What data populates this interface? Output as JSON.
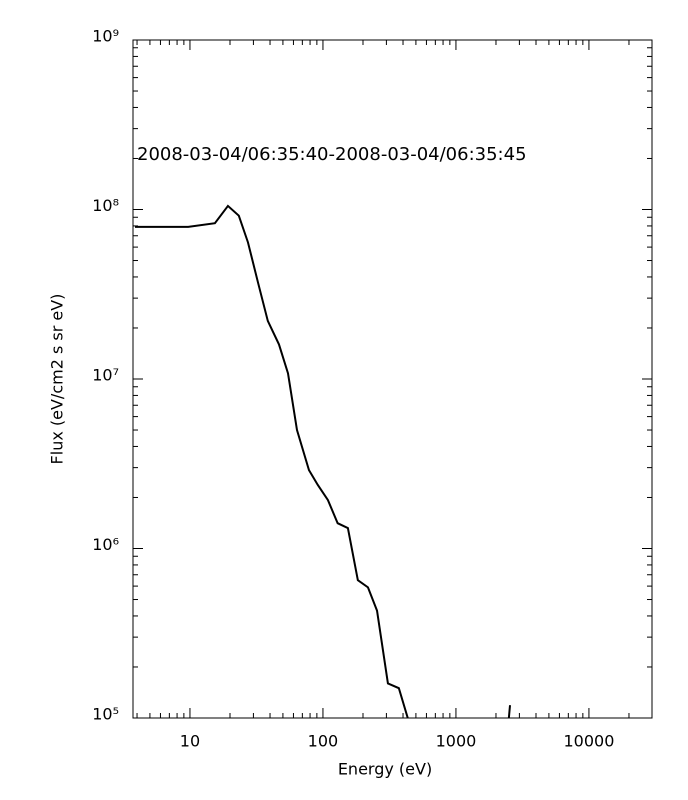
{
  "chart_data": {
    "type": "line",
    "annotation": "2008-03-04/06:35:40-2008-03-04/06:35:45",
    "x_label": "Energy (eV)",
    "y_label": "Flux (eV/cm2 s sr eV)",
    "x_log": true,
    "y_log": true,
    "minor_ticks": true,
    "xlim": [
      3.73,
      29800
    ],
    "ylim": [
      100000,
      1000000000
    ],
    "xticks": [
      10,
      100,
      1000,
      10000
    ],
    "yticks": [
      {
        "value": 100000,
        "label": "10⁵"
      },
      {
        "value": 1000000,
        "label": "10⁶"
      },
      {
        "value": 10000000,
        "label": "10⁷"
      },
      {
        "value": 100000000,
        "label": "10⁸"
      },
      {
        "value": 1000000000,
        "label": "10⁹"
      }
    ],
    "color": "#000000",
    "x": [
      3.86,
      9.7,
      15.4,
      19.3,
      23.3,
      27.3,
      32.5,
      38.5,
      46.7,
      54.6,
      63.8,
      78.5,
      91.5,
      109,
      129,
      154,
      183,
      218,
      255,
      308,
      372,
      450,
      null,
      2470,
      2550
    ],
    "values": [
      79000000,
      79000000,
      83000000,
      105000000,
      92000000,
      64000000,
      37000000,
      22000000,
      16000000,
      10800000,
      5000000,
      2900000,
      2370000,
      1930000,
      1410000,
      1320000,
      650000,
      590000,
      430000,
      160000,
      150000,
      91000,
      null,
      90000,
      119000
    ]
  }
}
